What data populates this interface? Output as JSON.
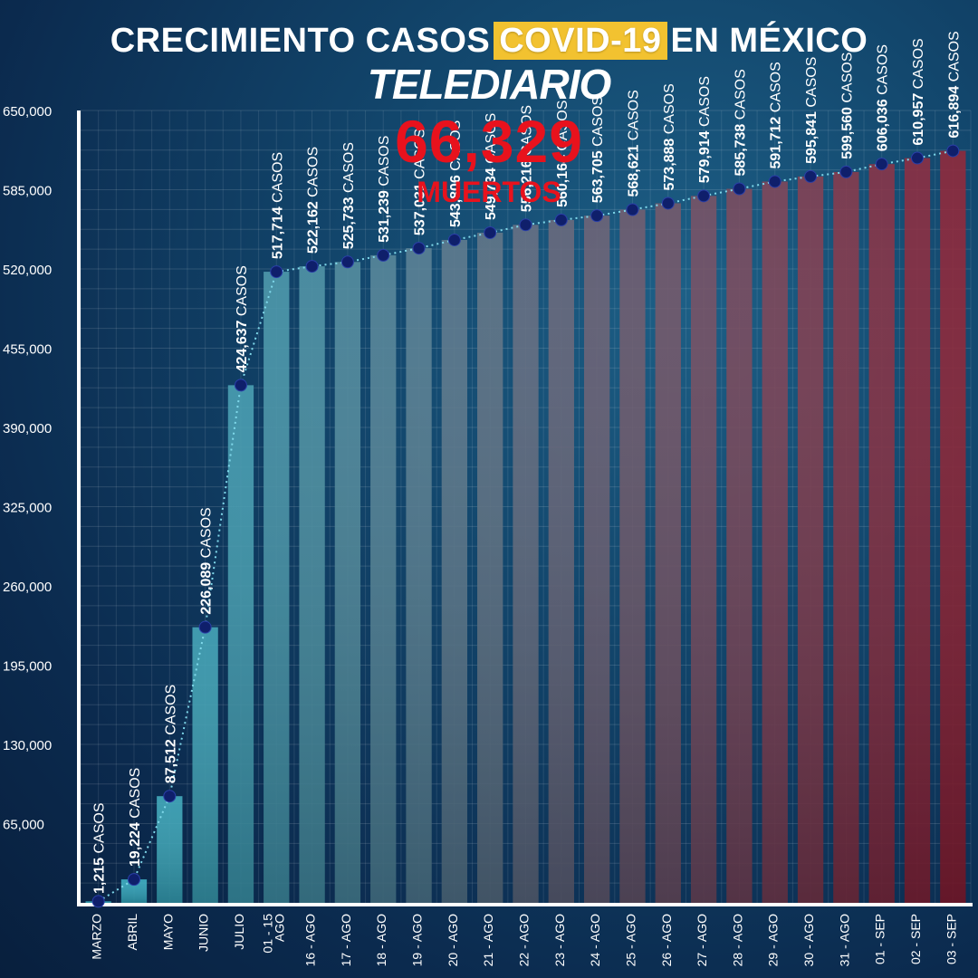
{
  "header": {
    "title_before": "CRECIMIENTO CASOS",
    "title_highlight": "COVID-19",
    "title_after": "EN MÉXICO",
    "brand": "TELEDIARIO",
    "deaths_value": "66,329",
    "deaths_label": "MUERTOS"
  },
  "colors": {
    "highlight": "#f2c230",
    "deaths": "#e8121d",
    "bar_start": "#2fb3c7",
    "bar_end": "#8a1a2e",
    "line": "#7fd8ea",
    "point": "#0f1f6b"
  },
  "chart_data": {
    "type": "bar",
    "title": "CRECIMIENTO CASOS COVID-19 EN MÉXICO",
    "xlabel": "",
    "ylabel": "",
    "ylim": [
      0,
      650000
    ],
    "yticks": [
      65000,
      130000,
      195000,
      260000,
      325000,
      390000,
      455000,
      520000,
      585000,
      650000
    ],
    "ytick_labels": [
      "65,000",
      "130,000",
      "195,000",
      "260,000",
      "325,000",
      "390,000",
      "455,000",
      "520,000",
      "585,000",
      "650,000"
    ],
    "grid": true,
    "categories": [
      "MARZO",
      "ABRIL",
      "MAYO",
      "JUNIO",
      "JULIO",
      "01 - 15 AGO",
      "16 - AGO",
      "17 - AGO",
      "18 - AGO",
      "19 - AGO",
      "20 - AGO",
      "21 - AGO",
      "22 - AGO",
      "23 - AGO",
      "24 - AGO",
      "25 - AGO",
      "26 - AGO",
      "27 - AGO",
      "28 - AGO",
      "29 - AGO",
      "30 - AGO",
      "31 - AGO",
      "01 - SEP",
      "02 - SEP",
      "03 - SEP"
    ],
    "values": [
      1215,
      19224,
      87512,
      226089,
      424637,
      517714,
      522162,
      525733,
      531239,
      537031,
      543806,
      549734,
      556216,
      560164,
      563705,
      568621,
      573888,
      579914,
      585738,
      591712,
      595841,
      599560,
      606036,
      610957,
      616894
    ],
    "value_labels": [
      "1,215",
      "19,224",
      "87,512",
      "226,089",
      "424,637",
      "517,714",
      "522,162",
      "525,733",
      "531,239",
      "537,031",
      "543,806",
      "549,734",
      "556,216",
      "560,164",
      "563,705",
      "568,621",
      "573,888",
      "579,914",
      "585,738",
      "591,712",
      "595,841",
      "599,560",
      "606,036",
      "610,957",
      "616,894"
    ],
    "value_suffix": "CASOS",
    "series": [
      {
        "values": [
          1215,
          19224,
          87512,
          226089,
          424637,
          517714,
          522162,
          525733,
          531239,
          537031,
          543806,
          549734,
          556216,
          560164,
          563705,
          568621,
          573888,
          579914,
          585738,
          591712,
          595841,
          599560,
          606036,
          610957,
          616894
        ]
      }
    ]
  }
}
